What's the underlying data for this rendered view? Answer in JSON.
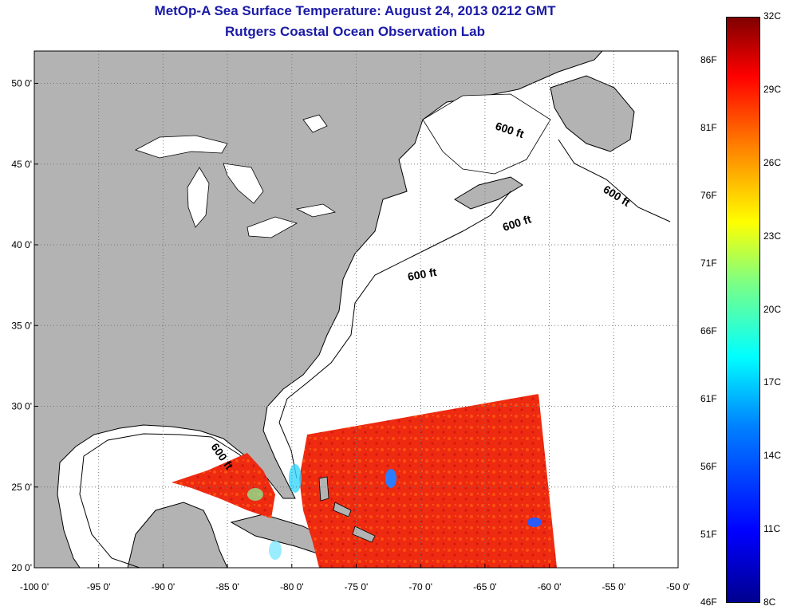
{
  "header": {
    "title": "MetOp-A Sea Surface Temperature:  August 24, 2013 0212 GMT",
    "subtitle": "Rutgers Coastal Ocean Observation Lab"
  },
  "map": {
    "lon_range": [
      -100,
      -50
    ],
    "lat_range": [
      20,
      52
    ],
    "lon_ticks": [
      "-100 0'",
      "-95 0'",
      "-90 0'",
      "-85 0'",
      "-80 0'",
      "-75 0'",
      "-70 0'",
      "-65 0'",
      "-60 0'",
      "-55 0'",
      "-50 0'"
    ],
    "lat_ticks": [
      "20 0'",
      "25 0'",
      "30 0'",
      "35 0'",
      "40 0'",
      "45 0'",
      "50 0'"
    ],
    "contour_label": "600 ft",
    "colors": {
      "land": "#b3b3b3",
      "ocean": "#ffffff",
      "sst_warm": "#ee2a10",
      "grid": "#888888"
    }
  },
  "colorbar": {
    "celsius": [
      "32C",
      "29C",
      "26C",
      "23C",
      "20C",
      "17C",
      "14C",
      "11C",
      "8C"
    ],
    "fahrenheit": [
      "86F",
      "81F",
      "76F",
      "71F",
      "66F",
      "61F",
      "56F",
      "51F",
      "46F"
    ]
  }
}
